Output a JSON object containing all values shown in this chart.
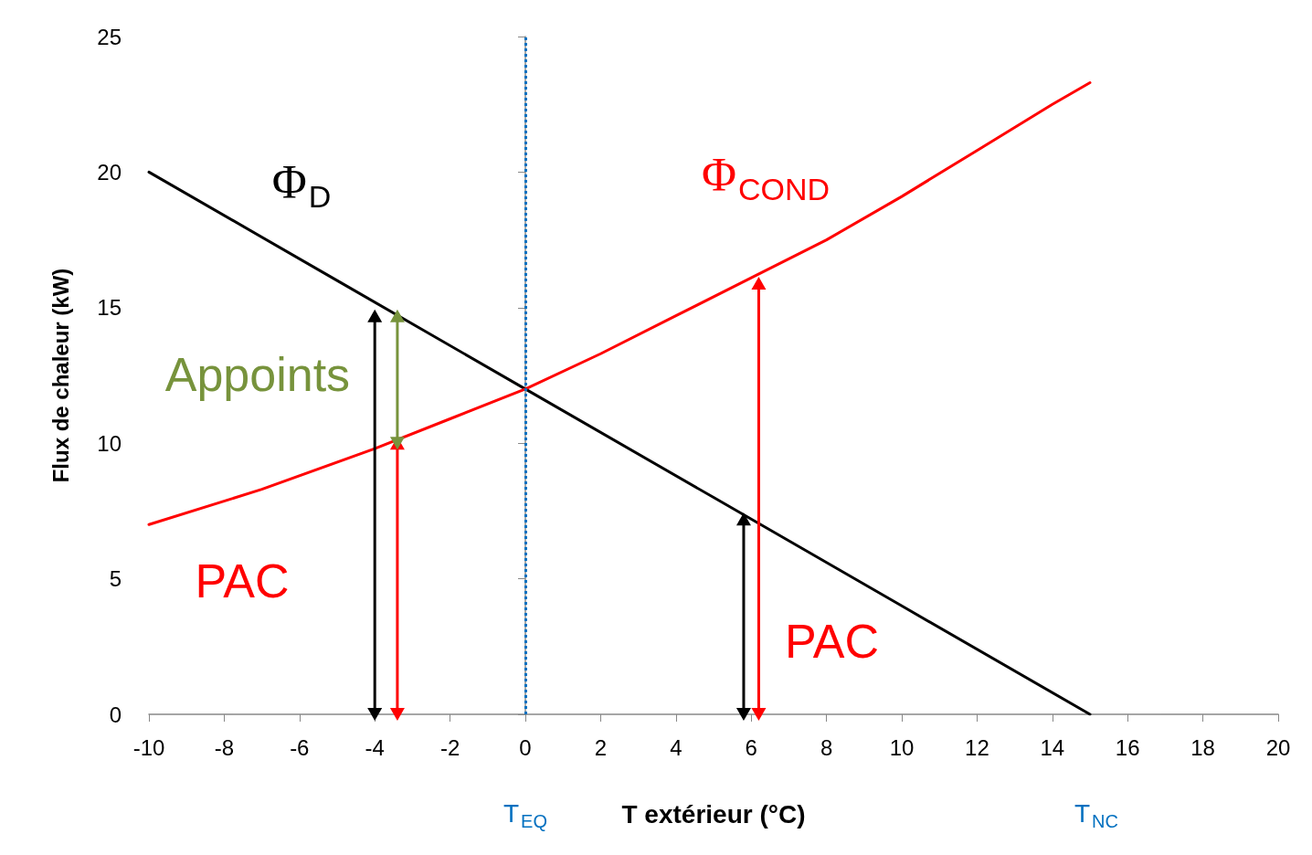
{
  "chart_data": {
    "type": "line",
    "xlabel": "T extérieur (°C)",
    "ylabel": "Flux de chaleur (kW)",
    "xlim": [
      -10,
      20
    ],
    "xticks": [
      -10,
      -8,
      -6,
      -4,
      -2,
      0,
      2,
      4,
      6,
      8,
      10,
      12,
      14,
      16,
      18,
      20
    ],
    "ylim": [
      0,
      25
    ],
    "yticks": [
      0,
      5,
      10,
      15,
      20,
      25
    ],
    "grid": false,
    "line_style": "solid",
    "series": [
      {
        "name": "Φ$_{D}$",
        "color": "#000000",
        "x": [
          -10,
          -5,
          0,
          5,
          10,
          15
        ],
        "values": [
          20,
          16,
          12,
          8,
          4,
          0
        ]
      },
      {
        "name": "Φ$_{COND}$",
        "color": "#ff0000",
        "x": [
          -10,
          -7,
          -4,
          -2,
          0,
          2,
          4,
          6,
          8,
          10,
          12,
          14,
          15
        ],
        "values": [
          7,
          8.3,
          9.8,
          10.9,
          12,
          13.3,
          14.7,
          16.1,
          17.5,
          19.1,
          20.8,
          22.5,
          23.3
        ]
      },
      {
        "color": "#000000",
        "marker": "triangle",
        "x": [
          -4,
          -4
        ],
        "values": [
          0,
          14.7
        ]
      },
      {
        "color": "#ff0000",
        "marker": "triangle",
        "x": [
          -3.4,
          -3.4
        ],
        "values": [
          0,
          10
        ]
      },
      {
        "name": "Appoints",
        "color": "#77933c",
        "marker": "triangle",
        "x": [
          -3.4,
          -3.4
        ],
        "values": [
          10,
          14.7
        ]
      },
      {
        "color": "#000000",
        "marker": "triangle",
        "x": [
          5.8,
          5.8
        ],
        "values": [
          0,
          7.2
        ]
      },
      {
        "name": "PAC",
        "color": "#ff0000",
        "marker": "triangle",
        "x": [
          6.2,
          6.2
        ],
        "values": [
          0,
          15.9
        ]
      }
    ],
    "ref_lines": [
      {
        "axis": "x",
        "value": 0,
        "label": "T$_{EQ}$",
        "color": "#0070c0",
        "line_style": "dotted"
      }
    ],
    "annotations": [
      "PAC",
      "T$_{NC}$"
    ]
  }
}
